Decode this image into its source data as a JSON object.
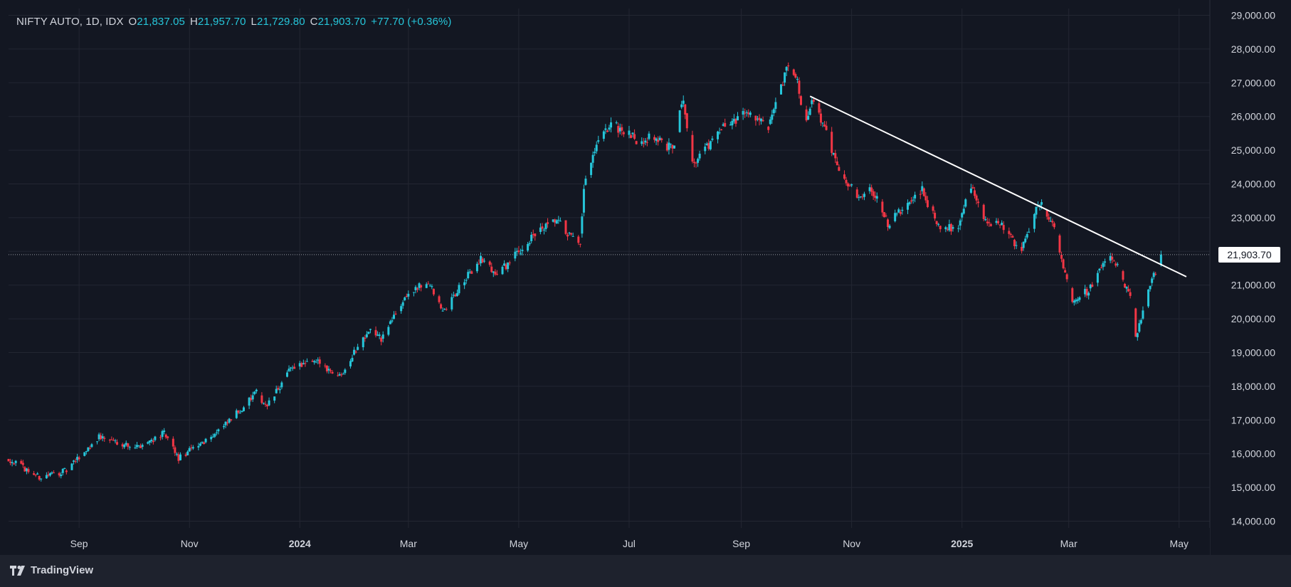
{
  "header": {
    "symbol": "NIFTY AUTO, 1D, IDX",
    "open_label": "O",
    "open": "21,837.05",
    "high_label": "H",
    "high": "21,957.70",
    "low_label": "L",
    "low": "21,729.80",
    "close_label": "C",
    "close": "21,903.70",
    "change": "+77.70 (+0.36%)"
  },
  "last_price_label": "21,903.70",
  "footer": {
    "brand": "TradingView"
  },
  "colors": {
    "background": "#131722",
    "up": "#26c6da",
    "down": "#f23645",
    "grid": "#232632",
    "text": "#d1d4dc"
  },
  "chart_data": {
    "type": "candlestick",
    "y_ticks": [
      "14,000.00",
      "15,000.00",
      "16,000.00",
      "17,000.00",
      "18,000.00",
      "19,000.00",
      "20,000.00",
      "21,000.00",
      "22,000.00",
      "23,000.00",
      "24,000.00",
      "25,000.00",
      "26,000.00",
      "27,000.00",
      "28,000.00",
      "29,000.00"
    ],
    "ylim": [
      13800,
      29200
    ],
    "xlim": [
      "2023-07-24",
      "2025-05-18"
    ],
    "x_ticks": [
      {
        "label": "Sep",
        "date": "2023-09-01",
        "bold": false
      },
      {
        "label": "Nov",
        "date": "2023-11-01",
        "bold": false
      },
      {
        "label": "2024",
        "date": "2024-01-01",
        "bold": true
      },
      {
        "label": "Mar",
        "date": "2024-03-01",
        "bold": false
      },
      {
        "label": "May",
        "date": "2024-05-01",
        "bold": false
      },
      {
        "label": "Jul",
        "date": "2024-07-01",
        "bold": false
      },
      {
        "label": "Sep",
        "date": "2024-09-01",
        "bold": false
      },
      {
        "label": "Nov",
        "date": "2024-11-01",
        "bold": false
      },
      {
        "label": "2025",
        "date": "2025-01-01",
        "bold": true
      },
      {
        "label": "Mar",
        "date": "2025-03-01",
        "bold": false
      },
      {
        "label": "May",
        "date": "2025-05-01",
        "bold": false
      }
    ],
    "anchors": [
      [
        "2023-07-24",
        15850
      ],
      [
        "2023-08-10",
        15300
      ],
      [
        "2023-08-25",
        15500
      ],
      [
        "2023-09-12",
        16500
      ],
      [
        "2023-10-03",
        16200
      ],
      [
        "2023-10-18",
        16600
      ],
      [
        "2023-10-26",
        15850
      ],
      [
        "2023-11-20",
        16800
      ],
      [
        "2023-12-08",
        17800
      ],
      [
        "2023-12-14",
        17400
      ],
      [
        "2023-12-28",
        18600
      ],
      [
        "2024-01-12",
        18700
      ],
      [
        "2024-01-23",
        18300
      ],
      [
        "2024-02-08",
        19700
      ],
      [
        "2024-02-15",
        19400
      ],
      [
        "2024-02-29",
        20700
      ],
      [
        "2024-03-12",
        21100
      ],
      [
        "2024-03-20",
        20200
      ],
      [
        "2024-04-10",
        21800
      ],
      [
        "2024-04-19",
        21300
      ],
      [
        "2024-05-10",
        22500
      ],
      [
        "2024-05-22",
        22900
      ],
      [
        "2024-06-04",
        22100
      ],
      [
        "2024-06-06",
        23900
      ],
      [
        "2024-06-13",
        25100
      ],
      [
        "2024-06-21",
        25800
      ],
      [
        "2024-07-05",
        25300
      ],
      [
        "2024-07-15",
        25400
      ],
      [
        "2024-07-25",
        25000
      ],
      [
        "2024-07-31",
        26600
      ],
      [
        "2024-08-05",
        24600
      ],
      [
        "2024-08-23",
        25700
      ],
      [
        "2024-09-05",
        26200
      ],
      [
        "2024-09-16",
        25600
      ],
      [
        "2024-09-27",
        27500
      ],
      [
        "2024-10-01",
        27200
      ],
      [
        "2024-10-07",
        25800
      ],
      [
        "2024-10-10",
        26600
      ],
      [
        "2024-10-24",
        24600
      ],
      [
        "2024-11-04",
        23600
      ],
      [
        "2024-11-12",
        23900
      ],
      [
        "2024-11-21",
        22800
      ],
      [
        "2024-12-10",
        23800
      ],
      [
        "2024-12-20",
        22600
      ],
      [
        "2024-12-30",
        22800
      ],
      [
        "2025-01-06",
        24000
      ],
      [
        "2025-01-13",
        22900
      ],
      [
        "2025-01-24",
        22700
      ],
      [
        "2025-02-03",
        22000
      ],
      [
        "2025-02-12",
        23500
      ],
      [
        "2025-02-19",
        23000
      ],
      [
        "2025-03-03",
        20600
      ],
      [
        "2025-03-11",
        20800
      ],
      [
        "2025-03-24",
        21900
      ],
      [
        "2025-03-28",
        21500
      ],
      [
        "2025-04-04",
        20600
      ],
      [
        "2025-04-07",
        19400
      ],
      [
        "2025-04-11",
        20300
      ],
      [
        "2025-04-21",
        21903.7
      ]
    ],
    "trendline": {
      "start": [
        "2024-10-09",
        26600
      ],
      "end": [
        "2025-05-05",
        21250
      ],
      "color": "#ffffff"
    },
    "last_price": 21903.7
  }
}
